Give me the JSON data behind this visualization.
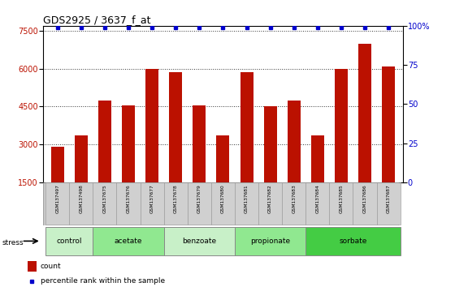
{
  "title": "GDS2925 / 3637_f_at",
  "samples": [
    "GSM137497",
    "GSM137498",
    "GSM137675",
    "GSM137676",
    "GSM137677",
    "GSM137678",
    "GSM137679",
    "GSM137680",
    "GSM137681",
    "GSM137682",
    "GSM137683",
    "GSM137684",
    "GSM137685",
    "GSM137686",
    "GSM137687"
  ],
  "counts": [
    2900,
    3350,
    4750,
    4550,
    6000,
    5850,
    4550,
    3350,
    5850,
    4500,
    4750,
    3350,
    6000,
    7000,
    6100
  ],
  "percentiles": [
    99,
    99,
    99,
    99,
    99,
    99,
    99,
    99,
    99,
    99,
    99,
    99,
    99,
    99,
    99
  ],
  "groups": [
    {
      "label": "control",
      "start": 0,
      "end": 2,
      "color": "#c8f0c8"
    },
    {
      "label": "acetate",
      "start": 2,
      "end": 5,
      "color": "#90e890"
    },
    {
      "label": "benzoate",
      "start": 5,
      "end": 8,
      "color": "#c8f0c8"
    },
    {
      "label": "propionate",
      "start": 8,
      "end": 11,
      "color": "#90e890"
    },
    {
      "label": "sorbate",
      "start": 11,
      "end": 15,
      "color": "#44cc44"
    }
  ],
  "ymin": 1500,
  "ymax": 7700,
  "yticks_left": [
    1500,
    3000,
    4500,
    6000,
    7500
  ],
  "yright_min": 0,
  "yright_max": 100,
  "yticks_right": [
    0,
    25,
    50,
    75,
    100
  ],
  "bar_color": "#bb1100",
  "dot_color": "#0000cc",
  "bar_width": 0.55,
  "grid_color": "#000000",
  "stress_label": "stress",
  "legend_count_label": "count",
  "legend_pct_label": "percentile rank within the sample",
  "bg_color": "#ffffff",
  "sample_box_color": "#c8c8c8",
  "group_border_color": "#888888"
}
